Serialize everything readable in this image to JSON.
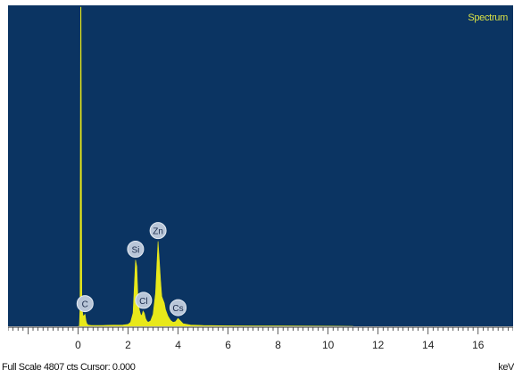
{
  "spectrum_title": "Spectrum",
  "status": {
    "full_scale_text": "Full Scale 4807 cts Cursor: 0.000",
    "unit": "keV"
  },
  "colors": {
    "background": "#0b3462",
    "peak_fill": "#e8e81a",
    "label": "#d8e046"
  },
  "chart_data": {
    "type": "area",
    "title": "Spectrum",
    "xlabel": "keV",
    "xlim": [
      -2.8,
      17.4
    ],
    "ylim": [
      0,
      4807
    ],
    "x_ticks": [
      0,
      2,
      4,
      6,
      8,
      10,
      12,
      14,
      16
    ],
    "peaks": [
      {
        "element": "C",
        "x": 0.28,
        "y": 180
      },
      {
        "element": "Si",
        "x": 2.3,
        "y": 1000
      },
      {
        "element": "Cl",
        "x": 2.62,
        "y": 230
      },
      {
        "element": "Zn",
        "x": 3.2,
        "y": 1280
      },
      {
        "element": "Cs",
        "x": 4.0,
        "y": 120
      }
    ],
    "series": [
      {
        "x": [
          0.0,
          0.05,
          0.08,
          0.1,
          0.12,
          0.15,
          0.2,
          0.28,
          0.32,
          0.35,
          0.4,
          0.5,
          0.6,
          0.8,
          1.0,
          1.2,
          1.5,
          1.8,
          2.0,
          2.1,
          2.2,
          2.25,
          2.3,
          2.35,
          2.4,
          2.45,
          2.5,
          2.55,
          2.6,
          2.65,
          2.7,
          2.75,
          2.8,
          2.9,
          3.0,
          3.1,
          3.15,
          3.2,
          3.25,
          3.3,
          3.35,
          3.4,
          3.45,
          3.5,
          3.6,
          3.7,
          3.8,
          3.9,
          4.0,
          4.1,
          4.2,
          4.5,
          5.0,
          6.0,
          7.0,
          8.0,
          9.0,
          10.0,
          11.0
        ],
        "y": [
          0,
          0,
          300,
          4807,
          4807,
          300,
          150,
          180,
          80,
          40,
          20,
          15,
          12,
          12,
          14,
          16,
          18,
          20,
          30,
          60,
          200,
          600,
          1000,
          900,
          400,
          250,
          180,
          160,
          230,
          200,
          120,
          80,
          60,
          80,
          180,
          500,
          900,
          1280,
          1000,
          700,
          450,
          400,
          350,
          250,
          150,
          90,
          60,
          70,
          120,
          80,
          40,
          20,
          12,
          8,
          6,
          5,
          4,
          3,
          0
        ]
      }
    ]
  }
}
